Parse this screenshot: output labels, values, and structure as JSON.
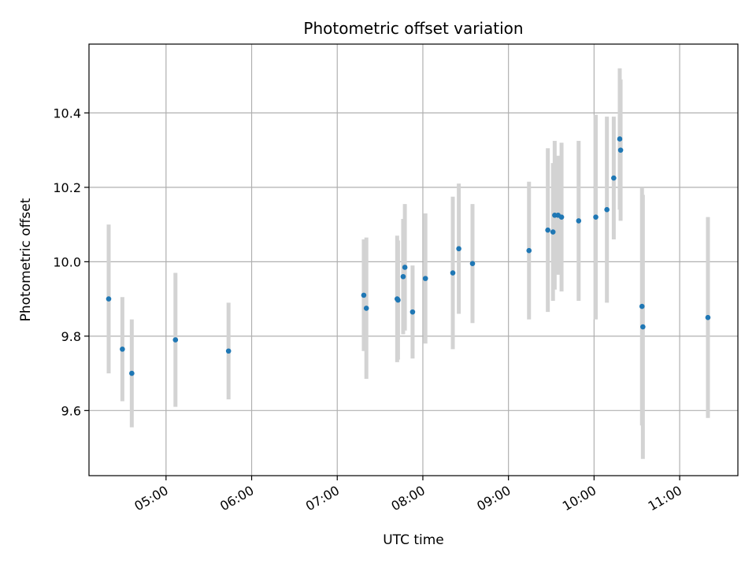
{
  "chart_data": {
    "type": "scatter",
    "title": "Photometric offset variation",
    "xlabel": "UTC time",
    "ylabel": "Photometric offset",
    "x_unit": "UTC time of day (hours)",
    "xlim": [
      4.1,
      11.68
    ],
    "ylim": [
      9.425,
      10.585
    ],
    "x_ticks": [
      {
        "value": 5,
        "label": "05:00"
      },
      {
        "value": 6,
        "label": "06:00"
      },
      {
        "value": 7,
        "label": "07:00"
      },
      {
        "value": 8,
        "label": "08:00"
      },
      {
        "value": 9,
        "label": "09:00"
      },
      {
        "value": 10,
        "label": "10:00"
      },
      {
        "value": 11,
        "label": "11:00"
      }
    ],
    "y_ticks": [
      {
        "value": 9.6,
        "label": "9.6"
      },
      {
        "value": 9.8,
        "label": "9.8"
      },
      {
        "value": 10.0,
        "label": "10.0"
      },
      {
        "value": 10.2,
        "label": "10.2"
      },
      {
        "value": 10.4,
        "label": "10.4"
      }
    ],
    "grid": true,
    "x_tick_rotation": "30deg",
    "colors": {
      "points": "#1f77b4",
      "error_bars": "#d3d3d3",
      "grid": "#b0b0b0",
      "axes": "#000000"
    },
    "points": [
      {
        "x": 4.33,
        "y": 9.9,
        "err": 0.2
      },
      {
        "x": 4.49,
        "y": 9.765,
        "err": 0.14
      },
      {
        "x": 4.6,
        "y": 9.7,
        "err": 0.145
      },
      {
        "x": 5.11,
        "y": 9.79,
        "err": 0.18
      },
      {
        "x": 5.73,
        "y": 9.76,
        "err": 0.13
      },
      {
        "x": 7.31,
        "y": 9.91,
        "err": 0.15
      },
      {
        "x": 7.34,
        "y": 9.875,
        "err": 0.19
      },
      {
        "x": 7.7,
        "y": 9.9,
        "err": 0.17
      },
      {
        "x": 7.71,
        "y": 9.897,
        "err": 0.16
      },
      {
        "x": 7.77,
        "y": 9.96,
        "err": 0.155
      },
      {
        "x": 7.79,
        "y": 9.985,
        "err": 0.17
      },
      {
        "x": 7.88,
        "y": 9.865,
        "err": 0.125
      },
      {
        "x": 8.03,
        "y": 9.955,
        "err": 0.175
      },
      {
        "x": 8.35,
        "y": 9.97,
        "err": 0.205
      },
      {
        "x": 8.42,
        "y": 10.035,
        "err": 0.175
      },
      {
        "x": 8.58,
        "y": 9.995,
        "err": 0.16
      },
      {
        "x": 9.24,
        "y": 10.03,
        "err": 0.185
      },
      {
        "x": 9.46,
        "y": 10.085,
        "err": 0.22
      },
      {
        "x": 9.52,
        "y": 10.08,
        "err": 0.185
      },
      {
        "x": 9.54,
        "y": 10.125,
        "err": 0.2
      },
      {
        "x": 9.58,
        "y": 10.125,
        "err": 0.16
      },
      {
        "x": 9.62,
        "y": 10.12,
        "err": 0.2
      },
      {
        "x": 9.82,
        "y": 10.11,
        "err": 0.215
      },
      {
        "x": 10.02,
        "y": 10.12,
        "err": 0.275
      },
      {
        "x": 10.15,
        "y": 10.14,
        "err": 0.25
      },
      {
        "x": 10.23,
        "y": 10.225,
        "err": 0.165
      },
      {
        "x": 10.3,
        "y": 10.33,
        "err": 0.19
      },
      {
        "x": 10.31,
        "y": 10.3,
        "err": 0.19
      },
      {
        "x": 10.56,
        "y": 9.88,
        "err": 0.32
      },
      {
        "x": 10.57,
        "y": 9.825,
        "err": 0.355
      },
      {
        "x": 11.33,
        "y": 9.85,
        "err": 0.27
      }
    ]
  }
}
